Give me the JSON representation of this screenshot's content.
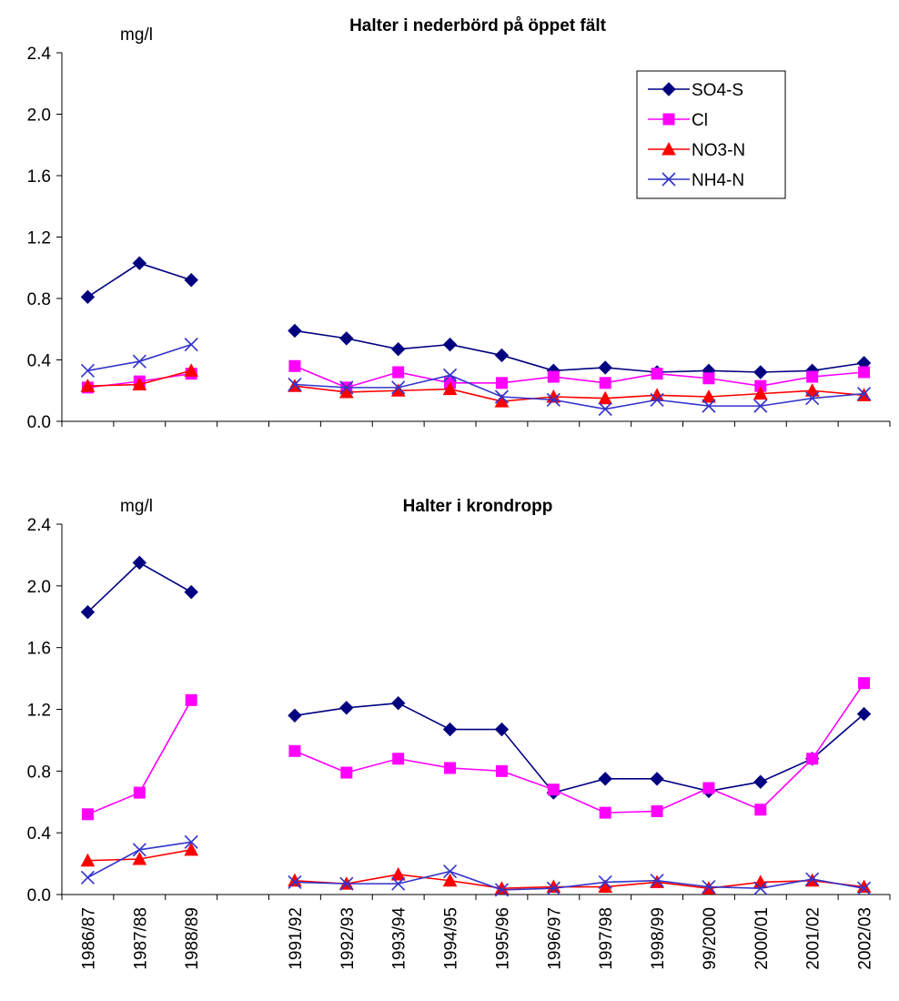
{
  "colors": {
    "SO4-S": "#000080",
    "Cl": "#ff00ff",
    "NO3-N": "#ff0000",
    "NH4-N": "#3333cc"
  },
  "markers": {
    "SO4-S": "diamond",
    "Cl": "square",
    "NO3-N": "triangle",
    "NH4-N": "x"
  },
  "chart_data": [
    {
      "type": "line",
      "title": "Halter i nederbörd på  öppet fält",
      "ylabel": "mg/l",
      "xlabel": "",
      "ylim": [
        0,
        2.4
      ],
      "yticks": [
        "0.0",
        "0.4",
        "0.8",
        "1.2",
        "1.6",
        "2.0",
        "2.4"
      ],
      "categories": [
        "1986/87",
        "1987/88",
        "1988/89",
        "",
        "1991/92",
        "1992/93",
        "1993/94",
        "1994/95",
        "1995/96",
        "1996/97",
        "1997/98",
        "1998/99",
        "99/2000",
        "2000/01",
        "2001/02",
        "2002/03"
      ],
      "show_xlabels": false,
      "legend": "top-right",
      "grid": false,
      "series": [
        {
          "name": "SO4-S",
          "values": [
            0.81,
            1.03,
            0.92,
            null,
            0.59,
            0.54,
            0.47,
            0.5,
            0.43,
            0.33,
            0.35,
            0.32,
            0.33,
            0.32,
            0.33,
            0.38
          ]
        },
        {
          "name": "Cl",
          "values": [
            0.22,
            0.26,
            0.31,
            null,
            0.36,
            0.22,
            0.32,
            0.25,
            0.25,
            0.29,
            0.25,
            0.31,
            0.28,
            0.23,
            0.29,
            0.32
          ]
        },
        {
          "name": "NO3-N",
          "values": [
            0.23,
            0.24,
            0.33,
            null,
            0.23,
            0.19,
            0.2,
            0.21,
            0.13,
            0.16,
            0.15,
            0.17,
            0.16,
            0.18,
            0.2,
            0.17
          ]
        },
        {
          "name": "NH4-N",
          "values": [
            0.33,
            0.39,
            0.5,
            null,
            0.24,
            0.22,
            0.22,
            0.3,
            0.16,
            0.14,
            0.08,
            0.14,
            0.1,
            0.1,
            0.15,
            0.18
          ]
        }
      ]
    },
    {
      "type": "line",
      "title": "Halter i  krondropp",
      "ylabel": "mg/l",
      "xlabel": "",
      "ylim": [
        0,
        2.4
      ],
      "yticks": [
        "0.0",
        "0.4",
        "0.8",
        "1.2",
        "1.6",
        "2.0",
        "2.4"
      ],
      "categories": [
        "1986/87",
        "1987/88",
        "1988/89",
        "",
        "1991/92",
        "1992/93",
        "1993/94",
        "1994/95",
        "1995/96",
        "1996/97",
        "1997/98",
        "1998/99",
        "99/2000",
        "2000/01",
        "2001/02",
        "2002/03"
      ],
      "show_xlabels": true,
      "legend": "none",
      "grid": false,
      "series": [
        {
          "name": "SO4-S",
          "values": [
            1.83,
            2.15,
            1.96,
            null,
            1.16,
            1.21,
            1.24,
            1.07,
            1.07,
            0.66,
            0.75,
            0.75,
            0.67,
            0.73,
            0.88,
            1.17
          ]
        },
        {
          "name": "Cl",
          "values": [
            0.52,
            0.66,
            1.26,
            null,
            0.93,
            0.79,
            0.88,
            0.82,
            0.8,
            0.68,
            0.53,
            0.54,
            0.69,
            0.55,
            0.88,
            1.37
          ]
        },
        {
          "name": "NO3-N",
          "values": [
            0.22,
            0.23,
            0.29,
            null,
            0.09,
            0.07,
            0.13,
            0.09,
            0.04,
            0.05,
            0.05,
            0.08,
            0.04,
            0.08,
            0.09,
            0.05
          ]
        },
        {
          "name": "NH4-N",
          "values": [
            0.11,
            0.29,
            0.34,
            null,
            0.08,
            0.07,
            0.07,
            0.15,
            0.03,
            0.04,
            0.08,
            0.09,
            0.05,
            0.04,
            0.1,
            0.04
          ]
        }
      ]
    }
  ]
}
